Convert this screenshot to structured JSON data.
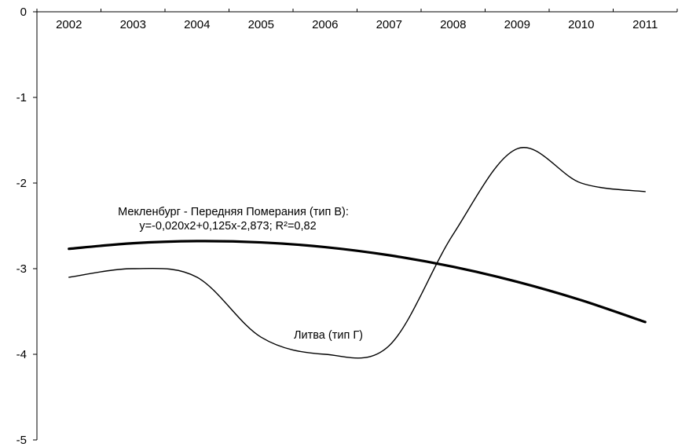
{
  "chart_data": {
    "type": "line",
    "categories": [
      "2002",
      "2003",
      "2004",
      "2005",
      "2006",
      "2007",
      "2008",
      "2009",
      "2010",
      "2011"
    ],
    "x_axis_position": "top",
    "ylim": [
      -5,
      0
    ],
    "yticks": [
      0,
      -1,
      -2,
      -3,
      -4,
      -5
    ],
    "ytick_labels": [
      "0",
      "-1",
      "-2",
      "-3",
      "-4",
      "-5"
    ],
    "grid": false,
    "legend": "none",
    "series": [
      {
        "name": "Мекленбург - Передняя Померания (тип В)",
        "style": "thick",
        "color": "#000000",
        "values": [
          -2.768,
          -2.703,
          -2.678,
          -2.693,
          -2.748,
          -2.843,
          -2.978,
          -3.153,
          -3.368,
          -3.623
        ]
      },
      {
        "name": "Литва (тип Г)",
        "style": "thin",
        "color": "#000000",
        "values": [
          -3.1,
          -3.0,
          -3.1,
          -3.8,
          -4.0,
          -3.9,
          -2.6,
          -1.6,
          -2.0,
          -2.1
        ]
      }
    ],
    "annotations": [
      {
        "id": "mecklenburg_label",
        "text": "Мекленбург - Передняя Померания (тип В):"
      },
      {
        "id": "mecklenburg_eq",
        "text": "y=-0,020x2+0,125x-2,873; R²=0,82"
      },
      {
        "id": "lithuania_label",
        "text": "Литва (тип Г)"
      }
    ]
  }
}
